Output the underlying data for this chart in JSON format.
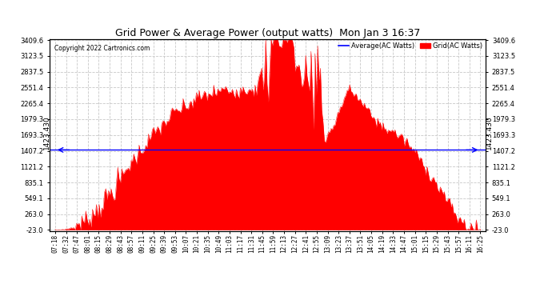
{
  "title": "Grid Power & Average Power (output watts)  Mon Jan 3 16:37",
  "copyright": "Copyright 2022 Cartronics.com",
  "legend_avg": "Average(AC Watts)",
  "legend_grid": "Grid(AC Watts)",
  "avg_value": 1423.43,
  "avg_label": "1423.430",
  "ylim_min": -23.0,
  "ylim_max": 3409.6,
  "yticks": [
    -23.0,
    263.0,
    549.1,
    835.1,
    1121.2,
    1407.2,
    1693.3,
    1979.3,
    2265.4,
    2551.4,
    2837.5,
    3123.5,
    3409.6
  ],
  "background_color": "#ffffff",
  "fill_color": "#ff0000",
  "avg_line_color": "#0000ff",
  "grid_color": "#c8c8c8",
  "title_color": "#000000",
  "x_times": [
    "07:18",
    "07:32",
    "07:47",
    "08:01",
    "08:15",
    "08:29",
    "08:43",
    "08:57",
    "09:11",
    "09:25",
    "09:39",
    "09:53",
    "10:07",
    "10:21",
    "10:35",
    "10:49",
    "11:03",
    "11:17",
    "11:31",
    "11:45",
    "11:59",
    "12:13",
    "12:27",
    "12:41",
    "12:55",
    "13:09",
    "13:23",
    "13:37",
    "13:51",
    "14:05",
    "14:19",
    "14:33",
    "14:47",
    "15:01",
    "15:15",
    "15:29",
    "15:43",
    "15:57",
    "16:11",
    "16:25"
  ]
}
